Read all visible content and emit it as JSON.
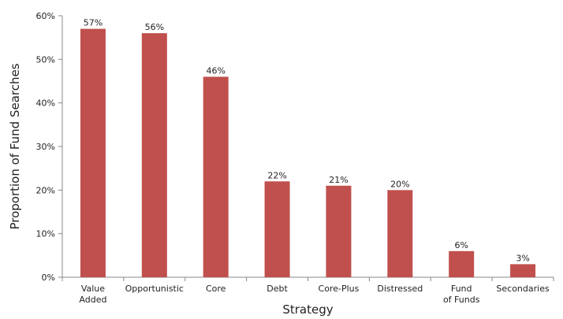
{
  "chart_data": {
    "type": "bar",
    "title": "",
    "xlabel": "Strategy",
    "ylabel": "Proportion of Fund Searches",
    "ylim": [
      0,
      60
    ],
    "y_ticks": [
      "0%",
      "10%",
      "20%",
      "30%",
      "40%",
      "50%",
      "60%"
    ],
    "y_tick_values": [
      0,
      10,
      20,
      30,
      40,
      50,
      60
    ],
    "categories": [
      "Value Added",
      "Opportunistic",
      "Core",
      "Debt",
      "Core-Plus",
      "Distressed",
      "Fund of Funds",
      "Secondaries"
    ],
    "category_label_lines": [
      [
        "Value",
        "Added"
      ],
      [
        "Opportunistic"
      ],
      [
        "Core"
      ],
      [
        "Debt"
      ],
      [
        "Core-Plus"
      ],
      [
        "Distressed"
      ],
      [
        "Fund",
        "of Funds"
      ],
      [
        "Secondaries"
      ]
    ],
    "values": [
      57,
      56,
      46,
      22,
      21,
      20,
      6,
      3
    ],
    "data_labels": [
      "57%",
      "56%",
      "46%",
      "22%",
      "21%",
      "20%",
      "6%",
      "3%"
    ],
    "grid": false,
    "legend": "none",
    "colors": {
      "bar": "#c0504d",
      "axis": "#888888",
      "text": "#222222"
    }
  }
}
